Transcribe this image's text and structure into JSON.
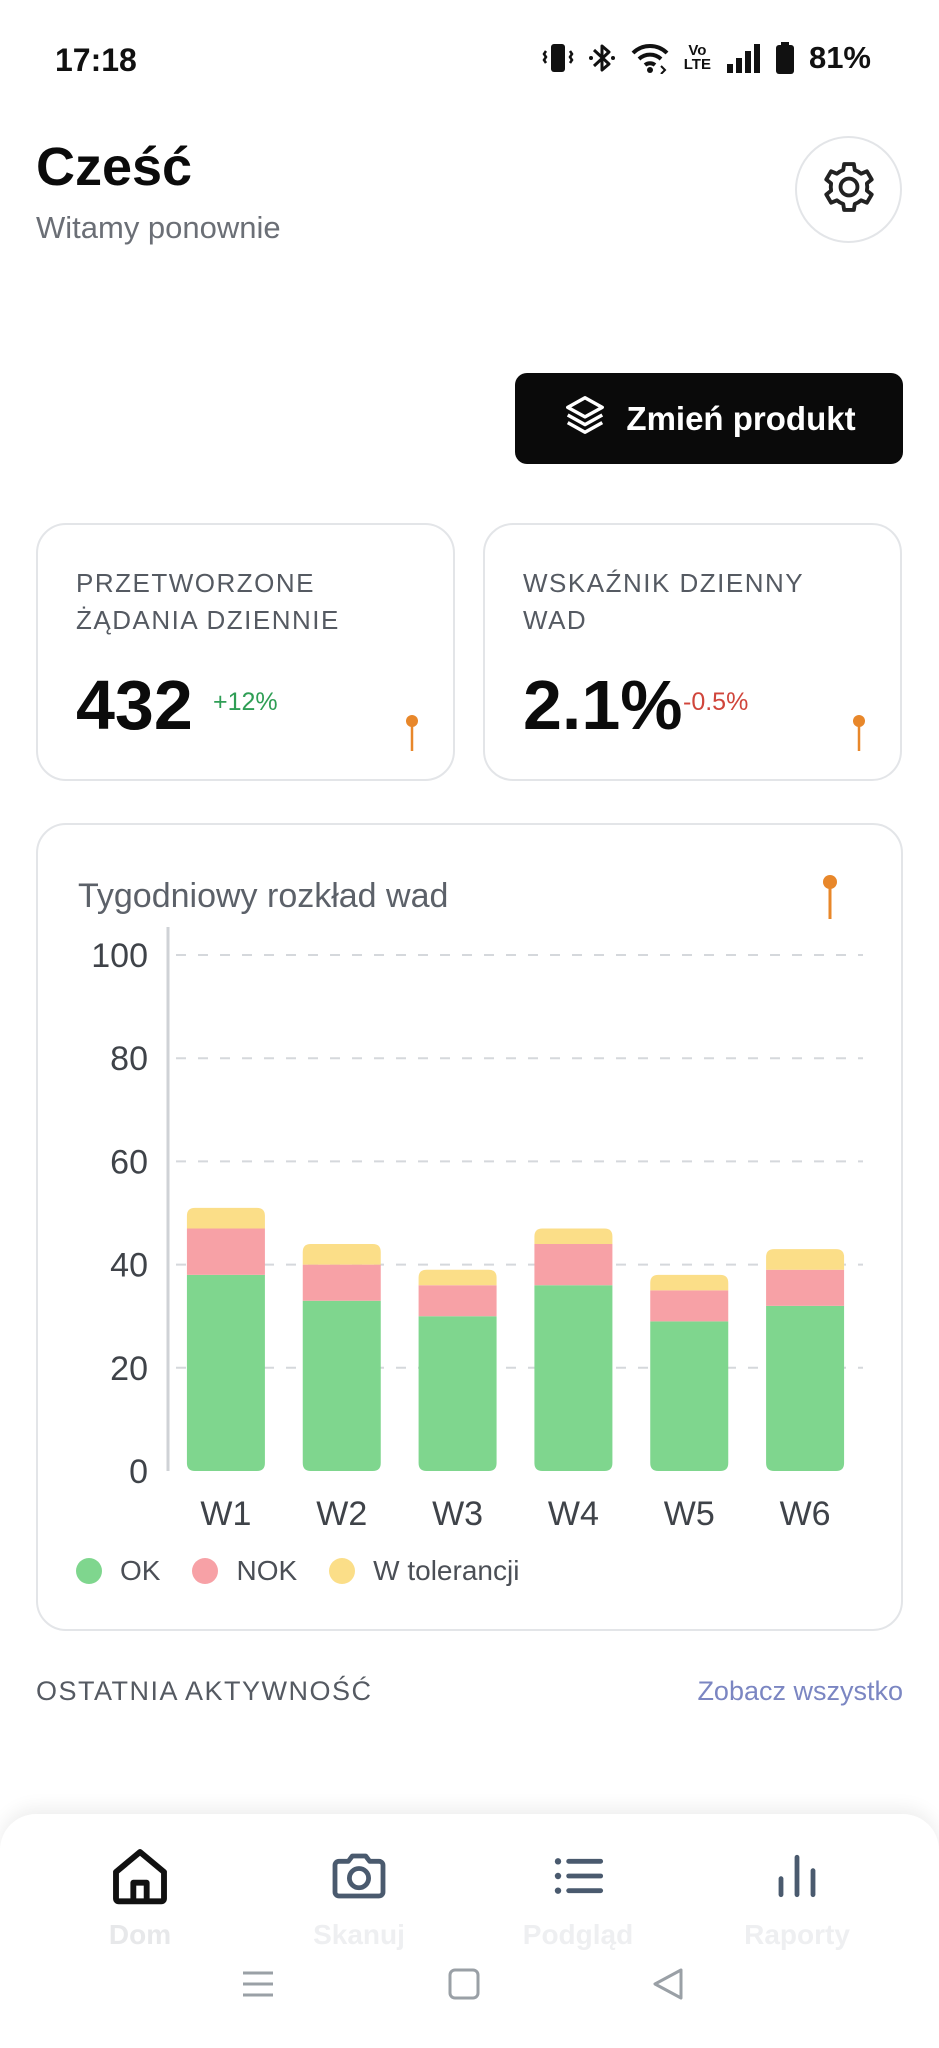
{
  "status_bar": {
    "time": "17:18",
    "battery": "81%",
    "icons": [
      "vibrate-icon",
      "bluetooth-icon",
      "wifi-icon",
      "volte-icon",
      "signal-icon",
      "battery-icon"
    ],
    "volte_top": "Vo",
    "volte_bottom": "LTE"
  },
  "header": {
    "greeting": "Cześć",
    "subtitle": "Witamy ponownie",
    "settings_icon": "gear-icon"
  },
  "change_product": {
    "label": "Zmień produkt",
    "icon": "layers-icon"
  },
  "kpis": [
    {
      "title": "PRZETWORZONE ŻĄDANIA DZIENNIE",
      "value": "432",
      "delta": "+12%",
      "delta_color": "#2f9e55"
    },
    {
      "title": "WSKAŹNIK DZIENNY WAD",
      "value": "2.1%",
      "delta": "-0.5%",
      "delta_color": "#d0453b"
    }
  ],
  "chart": {
    "title": "Tygodniowy rozkład wad",
    "legend": [
      {
        "label": "OK",
        "color": "#7fd68e"
      },
      {
        "label": "NOK",
        "color": "#f7a1a6"
      },
      {
        "label": "W tolerancji",
        "color": "#fbde88"
      }
    ]
  },
  "chart_data": {
    "type": "bar",
    "stacked": true,
    "title": "Tygodniowy rozkład wad",
    "categories": [
      "W1",
      "W2",
      "W3",
      "W4",
      "W5",
      "W6"
    ],
    "series": [
      {
        "name": "OK",
        "values": [
          38,
          33,
          30,
          36,
          29,
          32
        ],
        "color": "#7fd68e"
      },
      {
        "name": "NOK",
        "values": [
          9,
          7,
          6,
          8,
          6,
          7
        ],
        "color": "#f7a1a6"
      },
      {
        "name": "W tolerancji",
        "values": [
          4,
          4,
          3,
          3,
          3,
          4
        ],
        "color": "#fbde88"
      }
    ],
    "ylim": [
      0,
      100
    ],
    "yticks": [
      0,
      20,
      40,
      60,
      80,
      100
    ],
    "grid": true,
    "legend_position": "bottom-left"
  },
  "recent": {
    "label": "OSTATNIA AKTYWNOŚĆ",
    "see_all": "Zobacz wszystko"
  },
  "nav": {
    "items": [
      {
        "label": "Dom",
        "icon": "home-icon"
      },
      {
        "label": "Skanuj",
        "icon": "camera-icon"
      },
      {
        "label": "Podgląd",
        "icon": "list-icon"
      },
      {
        "label": "Raporty",
        "icon": "bar-chart-icon"
      }
    ]
  },
  "colors": {
    "accent_dark": "#0a0a0a",
    "pin": "#e8872a",
    "grid": "#d5d8dc"
  }
}
